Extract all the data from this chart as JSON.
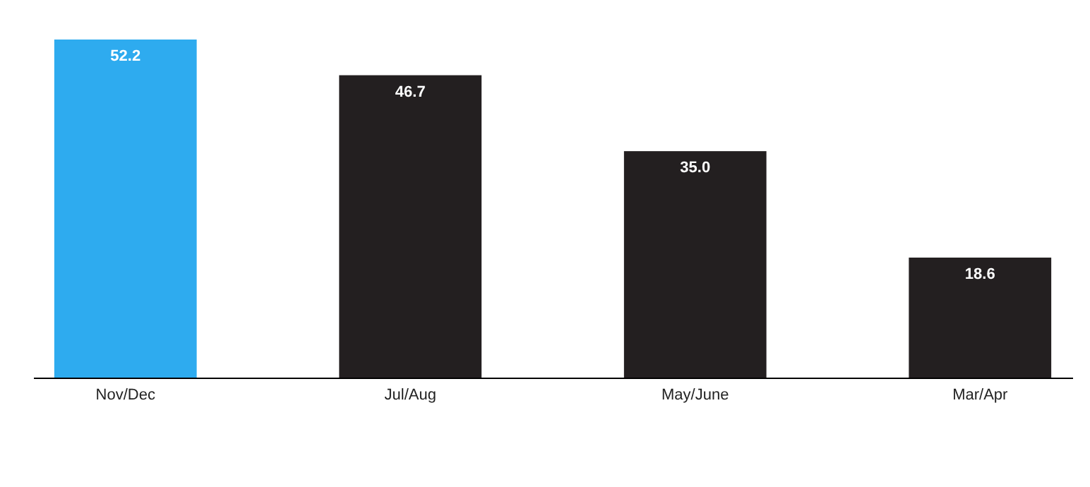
{
  "chart_data": {
    "type": "bar",
    "categories": [
      "Nov/Dec",
      "Jul/Aug",
      "May/June",
      "Mar/Apr"
    ],
    "values": [
      52.2,
      46.7,
      35.0,
      18.6
    ],
    "value_labels": [
      "52.2",
      "46.7",
      "35.0",
      "18.6"
    ],
    "colors": [
      "#2eabef",
      "#231f20",
      "#231f20",
      "#231f20"
    ]
  }
}
